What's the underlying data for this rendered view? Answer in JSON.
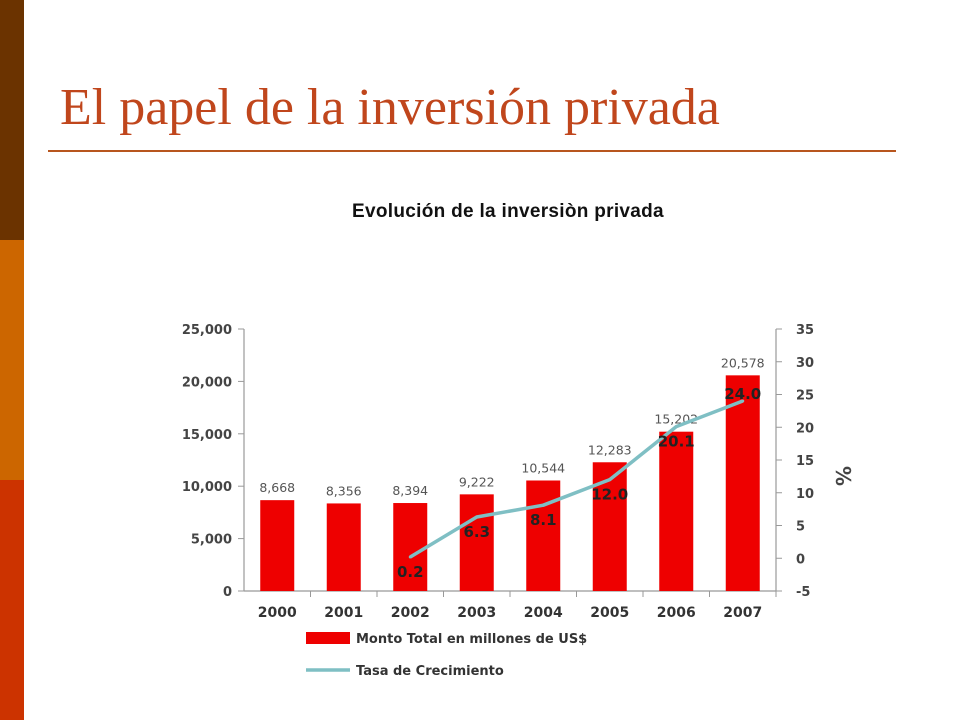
{
  "slide": {
    "title": "El papel de la inversión privada"
  },
  "chart_data": {
    "type": "bar",
    "title": "Evolución de la inversiòn privada",
    "categories": [
      "2000",
      "2001",
      "2002",
      "2003",
      "2004",
      "2005",
      "2006",
      "2007"
    ],
    "series": [
      {
        "name": "Monto Total en millones de US$",
        "type": "bar",
        "axis": "left",
        "color": "#ee0000",
        "values": [
          8668,
          8356,
          8394,
          9222,
          10544,
          12283,
          15202,
          20578
        ],
        "labels": [
          "8,668",
          "8,356",
          "8,394",
          "9,222",
          "10,544",
          "12,283",
          "15,202",
          "20,578"
        ]
      },
      {
        "name": "Tasa de Crecimiento",
        "type": "line",
        "axis": "right",
        "color": "#7fbfc4",
        "values": [
          null,
          null,
          0.2,
          6.3,
          8.1,
          12.0,
          20.1,
          24.0
        ],
        "labels": [
          "",
          "",
          "0.2",
          "6.3",
          "8.1",
          "12.0",
          "20.1",
          "24.0"
        ]
      }
    ],
    "y_left": {
      "ylim": [
        0,
        25000
      ],
      "ticks": [
        0,
        5000,
        10000,
        15000,
        20000,
        25000
      ],
      "tick_labels": [
        "0",
        "5,000",
        "10,000",
        "15,000",
        "20,000",
        "25,000"
      ]
    },
    "y_right": {
      "ylim": [
        -5,
        35
      ],
      "ticks": [
        -5,
        0,
        5,
        10,
        15,
        20,
        25,
        30,
        35
      ],
      "tick_labels": [
        "-5",
        "0",
        "5",
        "10",
        "15",
        "20",
        "25",
        "30",
        "35"
      ],
      "label": "%"
    },
    "grid": false,
    "legend": "bottom"
  }
}
